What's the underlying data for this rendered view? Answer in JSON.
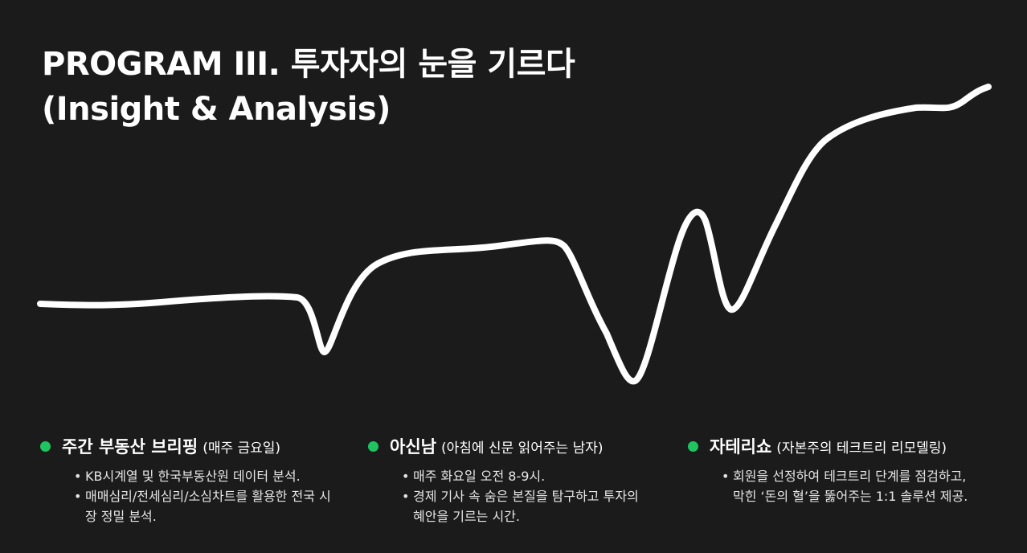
{
  "title": {
    "line1": "PROGRAM III. 투자자의 눈을 기르다",
    "line2": "(Insight & Analysis)"
  },
  "colors": {
    "background": "#1b1b1b",
    "accent": "#1fc35f",
    "line": "#ffffff"
  },
  "programs": [
    {
      "name": "주간 부동산 브리핑",
      "sub": "(매주 금요일)",
      "bullets": [
        "KB시계열 및 한국부동산원 데이터 분석.",
        "매매심리/전세심리/소심차트를 활용한 전국 시장 정밀 분석."
      ]
    },
    {
      "name": "아신남",
      "sub": "(아침에 신문 읽어주는 남자)",
      "bullets": [
        "매주 화요일 오전 8-9시.",
        "경제 기사 속 숨은 본질을 탐구하고 투자의 혜안을 기르는 시간."
      ]
    },
    {
      "name": "자테리쇼",
      "sub": "(자본주의 테크트리 리모델링)",
      "bullets": [
        "회원을 선정하여 테크트리 단계를 점검하고, 막힌 ‘돈의 혈’을 뚫어주는 1:1 솔루션 제공."
      ]
    }
  ]
}
